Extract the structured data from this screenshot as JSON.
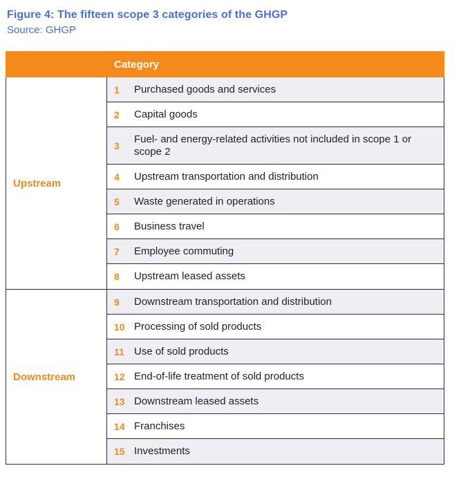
{
  "figure": {
    "title": "Figure 4: The fifteen scope 3 categories of the GHGP",
    "source": "Source: GHGP"
  },
  "colors": {
    "accent": "#f48a1c",
    "title_blue": "#4a6fd8",
    "shade": "#efeff3",
    "border": "#2b2b3a"
  },
  "table": {
    "header": "Category",
    "groups": [
      {
        "label": "Upstream",
        "rows": [
          {
            "num": "1",
            "text": "Purchased goods and services"
          },
          {
            "num": "2",
            "text": "Capital goods"
          },
          {
            "num": "3",
            "text": "Fuel- and energy-related activities not included in scope 1 or scope 2"
          },
          {
            "num": "4",
            "text": "Upstream transportation and distribution"
          },
          {
            "num": "5",
            "text": "Waste generated in operations"
          },
          {
            "num": "6",
            "text": "Business travel"
          },
          {
            "num": "7",
            "text": "Employee commuting"
          },
          {
            "num": "8",
            "text": "Upstream leased assets"
          }
        ]
      },
      {
        "label": "Downstream",
        "rows": [
          {
            "num": "9",
            "text": "Downstream transportation and distribution"
          },
          {
            "num": "10",
            "text": "Processing of sold products"
          },
          {
            "num": "11",
            "text": "Use of sold products"
          },
          {
            "num": "12",
            "text": "End-of-life treatment of sold products"
          },
          {
            "num": "13",
            "text": "Downstream leased assets"
          },
          {
            "num": "14",
            "text": "Franchises"
          },
          {
            "num": "15",
            "text": "Investments"
          }
        ]
      }
    ]
  }
}
